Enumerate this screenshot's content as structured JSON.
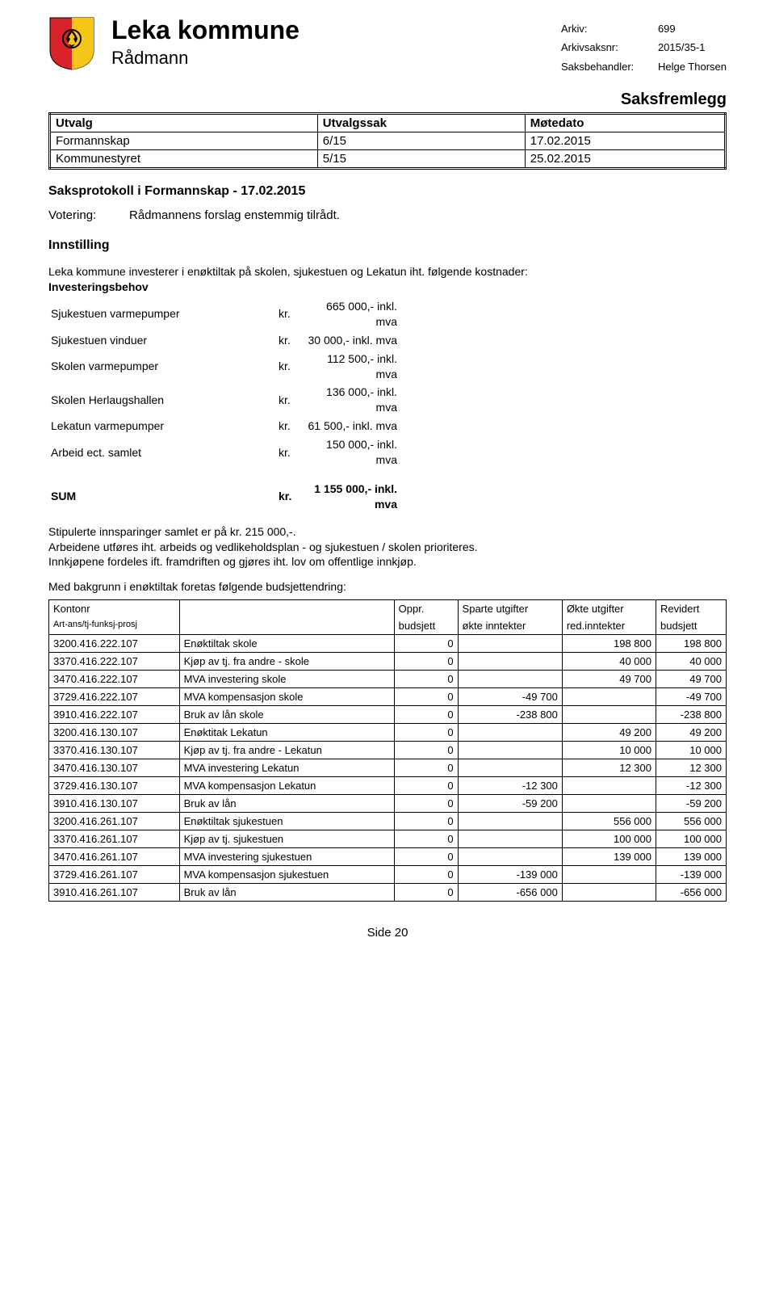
{
  "header": {
    "title": "Leka kommune",
    "subtitle": "Rådmann",
    "meta": {
      "arkiv_label": "Arkiv:",
      "arkiv_value": "699",
      "arkivsaksnr_label": "Arkivsaksnr:",
      "arkivsaksnr_value": "2015/35-1",
      "saksbehandler_label": "Saksbehandler:",
      "saksbehandler_value": "Helge Thorsen"
    },
    "saksfremlegg": "Saksfremlegg"
  },
  "utvalg_table": {
    "headers": [
      "Utvalg",
      "Utvalgssak",
      "Møtedato"
    ],
    "rows": [
      [
        "Formannskap",
        "6/15",
        "17.02.2015"
      ],
      [
        "Kommunestyret",
        "5/15",
        "25.02.2015"
      ]
    ]
  },
  "saksprotokoll": "Saksprotokoll i Formannskap - 17.02.2015",
  "votering": {
    "label": "Votering:",
    "text": "Rådmannens forslag enstemmig tilrådt."
  },
  "innstilling": {
    "heading": "Innstilling",
    "intro": "Leka kommune investerer i enøktiltak på skolen, sjukestuen og Lekatun iht. følgende kostnader:",
    "invest_heading": "Investeringsbehov",
    "costs": [
      {
        "label": "Sjukestuen varmepumper",
        "kr": "kr.",
        "amount": "665 000,- inkl. mva"
      },
      {
        "label": "Sjukestuen vinduer",
        "kr": "kr.",
        "amount": "30 000,- inkl. mva"
      },
      {
        "label": "Skolen varmepumper",
        "kr": "kr.",
        "amount": "112 500,- inkl. mva"
      },
      {
        "label": "Skolen Herlaugshallen",
        "kr": "kr.",
        "amount": "136 000,- inkl. mva"
      },
      {
        "label": "Lekatun varmepumper",
        "kr": "kr.",
        "amount": "61 500,- inkl. mva"
      },
      {
        "label": "Arbeid ect. samlet",
        "kr": "kr.",
        "amount": "150 000,- inkl. mva"
      }
    ],
    "sum": {
      "label": "SUM",
      "kr": "kr.",
      "amount": "1 155 000,- inkl. mva"
    },
    "para1": "Stipulerte innsparinger samlet er på kr. 215 000,-.",
    "para2": "Arbeidene utføres iht. arbeids og vedlikeholdsplan - og sjukestuen / skolen prioriteres.",
    "para3": "Innkjøpene fordeles ift. framdriften og gjøres iht. lov om offentlige innkjøp.",
    "budget_intro": "Med bakgrunn i enøktiltak foretas følgende budsjettendring:"
  },
  "budget_table": {
    "header1": [
      "Kontonr",
      "",
      "Oppr.",
      "Sparte utgifter",
      "Økte utgifter",
      "Revidert"
    ],
    "header2": [
      "Art-ans/tj-funksj-prosj",
      "",
      "budsjett",
      "økte inntekter",
      "red.inntekter",
      "budsjett"
    ],
    "rows": [
      [
        "3200.416.222.107",
        "Enøktiltak skole",
        "0",
        "",
        "198 800",
        "198 800"
      ],
      [
        "3370.416.222.107",
        "Kjøp av tj. fra andre - skole",
        "0",
        "",
        "40 000",
        "40 000"
      ],
      [
        "3470.416.222.107",
        "MVA investering skole",
        "0",
        "",
        "49 700",
        "49 700"
      ],
      [
        "3729.416.222.107",
        "MVA kompensasjon skole",
        "0",
        "-49 700",
        "",
        "-49 700"
      ],
      [
        "3910.416.222.107",
        "Bruk av lån skole",
        "0",
        "-238 800",
        "",
        "-238 800"
      ],
      [
        "3200.416.130.107",
        "Enøktitak Lekatun",
        "0",
        "",
        "49 200",
        "49 200"
      ],
      [
        "3370.416.130.107",
        "Kjøp av tj. fra andre - Lekatun",
        "0",
        "",
        "10 000",
        "10 000"
      ],
      [
        "3470.416.130.107",
        "MVA investering Lekatun",
        "0",
        "",
        "12 300",
        "12 300"
      ],
      [
        "3729.416.130.107",
        "MVA kompensasjon Lekatun",
        "0",
        "-12 300",
        "",
        "-12 300"
      ],
      [
        "3910.416.130.107",
        "Bruk av lån",
        "0",
        "-59 200",
        "",
        "-59 200"
      ],
      [
        "3200.416.261.107",
        "Enøktiltak sjukestuen",
        "0",
        "",
        "556 000",
        "556 000"
      ],
      [
        "3370.416.261.107",
        "Kjøp av tj. sjukestuen",
        "0",
        "",
        "100 000",
        "100 000"
      ],
      [
        "3470.416.261.107",
        "MVA investering sjukestuen",
        "0",
        "",
        "139 000",
        "139 000"
      ],
      [
        "3729.416.261.107",
        "MVA kompensasjon sjukestuen",
        "0",
        "-139 000",
        "",
        "-139 000"
      ],
      [
        "3910.416.261.107",
        "Bruk av lån",
        "0",
        "-656 000",
        "",
        "-656 000"
      ]
    ]
  },
  "footer": "Side 20",
  "colors": {
    "crest_red": "#d8232a",
    "crest_yellow": "#f5c518",
    "text": "#000000",
    "background": "#ffffff"
  }
}
